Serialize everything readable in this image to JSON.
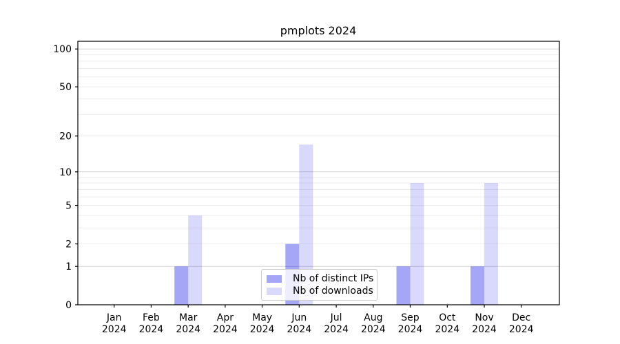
{
  "chart_data": {
    "type": "bar",
    "title": "pmplots 2024",
    "categories": [
      "Jan 2024",
      "Feb 2024",
      "Mar 2024",
      "Apr 2024",
      "May 2024",
      "Jun 2024",
      "Jul 2024",
      "Aug 2024",
      "Sep 2024",
      "Oct 2024",
      "Nov 2024",
      "Dec 2024"
    ],
    "series": [
      {
        "name": "Nb of distinct IPs",
        "key": "distinct-ips",
        "color": "rgba(0,0,230,0.35)",
        "values": [
          0,
          0,
          1,
          0,
          0,
          2,
          0,
          0,
          1,
          0,
          1,
          0
        ]
      },
      {
        "name": "Nb of downloads",
        "key": "downloads",
        "color": "rgba(0,0,230,0.15)",
        "values": [
          0,
          0,
          4,
          0,
          0,
          17,
          0,
          0,
          8,
          0,
          8,
          0
        ]
      }
    ],
    "xlabel": "",
    "ylabel": "",
    "yscale": "log1p",
    "yticks": [
      0,
      1,
      2,
      5,
      10,
      20,
      50,
      100
    ],
    "ylim": [
      0,
      115
    ],
    "grid": "horizontal, major and minor log lines",
    "legend_position": "lower center"
  },
  "colors": {
    "major_grid": "#d2d2d2",
    "minor_grid": "#ededed",
    "spine": "#000000",
    "background": "#ffffff",
    "legend_border": "#cccccc"
  }
}
